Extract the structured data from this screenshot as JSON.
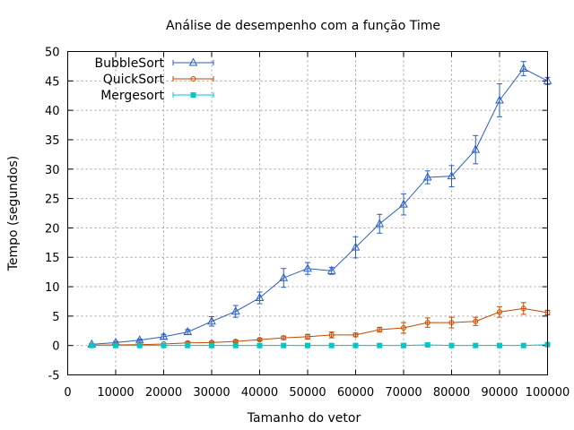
{
  "chart_data": {
    "type": "line",
    "title": "Análise de desempenho com a função Time",
    "xlabel": "Tamanho do vetor",
    "ylabel": "Tempo (segundos)",
    "xlim": [
      0,
      100000
    ],
    "ylim": [
      -5,
      50
    ],
    "xticks": [
      0,
      10000,
      20000,
      30000,
      40000,
      50000,
      60000,
      70000,
      80000,
      90000,
      100000
    ],
    "yticks": [
      -5,
      0,
      5,
      10,
      15,
      20,
      25,
      30,
      35,
      40,
      45,
      50
    ],
    "grid": true,
    "legend_position": "top-left",
    "x": [
      5000,
      10000,
      15000,
      20000,
      25000,
      30000,
      35000,
      40000,
      45000,
      50000,
      55000,
      60000,
      65000,
      70000,
      75000,
      80000,
      85000,
      90000,
      95000,
      100000
    ],
    "series": [
      {
        "name": "BubbleSort",
        "color": "#2a5ec0",
        "marker": "triangle",
        "values": [
          0.2,
          0.5,
          0.9,
          1.5,
          2.3,
          4.1,
          5.8,
          8.1,
          11.5,
          13.1,
          12.7,
          16.7,
          20.7,
          24.0,
          28.6,
          28.8,
          33.3,
          41.7,
          47.1,
          45.0
        ],
        "errors": [
          0.1,
          0.2,
          0.2,
          0.4,
          0.4,
          0.8,
          1.0,
          1.0,
          1.6,
          1.0,
          0.6,
          1.8,
          1.6,
          1.8,
          1.1,
          1.8,
          2.4,
          2.8,
          1.2,
          0.6
        ]
      },
      {
        "name": "QuickSort",
        "color": "#c04a00",
        "marker": "circle",
        "values": [
          0.05,
          0.1,
          0.15,
          0.25,
          0.45,
          0.5,
          0.7,
          1.0,
          1.3,
          1.5,
          1.8,
          1.8,
          2.7,
          3.0,
          3.9,
          3.9,
          4.1,
          5.7,
          6.3,
          5.6
        ],
        "errors": [
          0.05,
          0.05,
          0.05,
          0.1,
          0.2,
          0.2,
          0.2,
          0.2,
          0.3,
          0.4,
          0.5,
          0.3,
          0.4,
          0.9,
          0.8,
          0.9,
          0.7,
          0.9,
          1.0,
          0.4
        ]
      },
      {
        "name": "Mergesort",
        "color": "#00c8c8",
        "marker": "square",
        "values": [
          0.0,
          0.0,
          0.0,
          0.0,
          0.0,
          0.0,
          0.0,
          0.0,
          0.0,
          0.0,
          0.0,
          0.0,
          0.0,
          0.0,
          0.1,
          0.0,
          0.0,
          0.0,
          0.0,
          0.15
        ],
        "errors": [
          0,
          0,
          0,
          0,
          0,
          0,
          0,
          0,
          0,
          0,
          0,
          0,
          0,
          0,
          0.1,
          0,
          0,
          0,
          0,
          0.1
        ]
      }
    ]
  }
}
